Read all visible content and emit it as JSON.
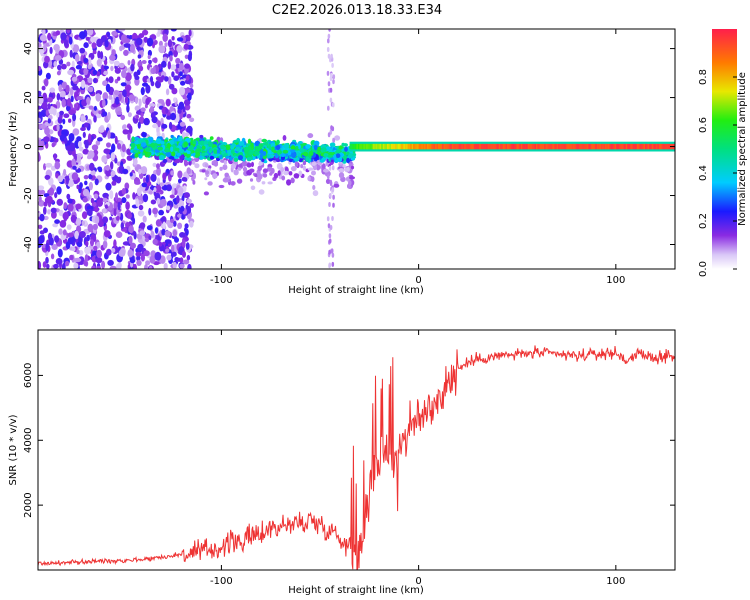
{
  "figure_title": "C2E2.2026.013.18.33.E34",
  "chart_data": [
    {
      "type": "heatmap",
      "title": "C2E2.2026.013.18.33.E34",
      "xlabel": "Height of straight line (km)",
      "ylabel": "Frequency (Hz)",
      "xlim": [
        -193,
        130
      ],
      "ylim": [
        -50,
        48
      ],
      "xticks": [
        -100,
        0,
        100
      ],
      "yticks": [
        -40,
        -20,
        0,
        20,
        40
      ],
      "colorbar": {
        "label": "Normalized spectral amplitude",
        "range": [
          0,
          1
        ],
        "ticks": [
          0.0,
          0.2,
          0.4,
          0.6,
          0.8
        ]
      },
      "description_segments": [
        {
          "x": [
            -193,
            -118
          ],
          "behavior": "broadband scattered noise across all frequencies",
          "center_amplitude": 0.15
        },
        {
          "x": [
            -140,
            -35
          ],
          "behavior": "concentrated band near 0 Hz (±10 Hz), low-mid amplitude",
          "center_amplitude": 0.4
        },
        {
          "x": [
            -35,
            130
          ],
          "behavior": "narrow line at ~0 Hz, high amplitude",
          "center_amplitude": 0.9
        }
      ]
    },
    {
      "type": "line",
      "xlabel": "Height of straight line (km)",
      "ylabel": "SNR (10 * v/v)",
      "xlim": [
        -193,
        130
      ],
      "ylim": [
        0,
        7400
      ],
      "xticks": [
        -100,
        0,
        100
      ],
      "yticks": [
        2000,
        4000,
        6000
      ],
      "color": "#ee3333",
      "series": [
        {
          "name": "SNR",
          "x": [
            -193,
            -180,
            -170,
            -160,
            -150,
            -140,
            -130,
            -120,
            -110,
            -105,
            -100,
            -95,
            -90,
            -85,
            -80,
            -75,
            -70,
            -65,
            -60,
            -55,
            -50,
            -45,
            -40,
            -35,
            -30,
            -28,
            -25,
            -22,
            -20,
            -18,
            -15,
            -13,
            -10,
            -5,
            0,
            5,
            10,
            15,
            20,
            25,
            30,
            40,
            50,
            60,
            70,
            80,
            90,
            100,
            105,
            110,
            120,
            130
          ],
          "y": [
            200,
            220,
            250,
            280,
            300,
            330,
            400,
            480,
            550,
            650,
            700,
            850,
            900,
            1000,
            1150,
            1300,
            1350,
            1400,
            1450,
            1550,
            1400,
            1250,
            1000,
            700,
            500,
            900,
            2500,
            3300,
            3400,
            3500,
            3700,
            3300,
            3900,
            4300,
            4600,
            5000,
            5300,
            5800,
            6200,
            6400,
            6500,
            6600,
            6650,
            6700,
            6650,
            6600,
            6650,
            6700,
            6450,
            6650,
            6550,
            6600
          ]
        }
      ]
    }
  ]
}
